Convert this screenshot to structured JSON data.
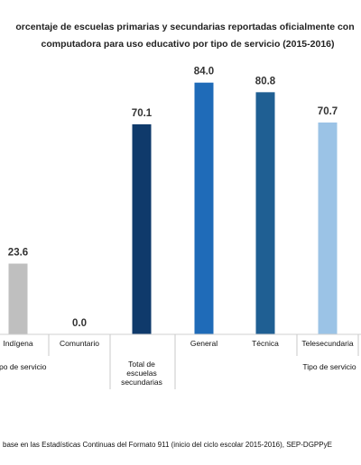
{
  "chart_data": {
    "type": "bar",
    "title_lines": [
      "orcentaje de escuelas primarias y secundarias reportadas oficialmente con",
      "computadora para uso educativo por tipo de servicio (2015-2016)"
    ],
    "categories": [
      [
        "Indígena"
      ],
      [
        "Comuntario"
      ],
      [
        "Total de",
        "escuelas",
        "secundarias"
      ],
      [
        "General"
      ],
      [
        "Técnica"
      ],
      [
        "Telesecundaria"
      ]
    ],
    "values": [
      23.6,
      0.0,
      70.1,
      84.0,
      80.8,
      70.7
    ],
    "value_labels": [
      "23.6",
      "0.0",
      "70.1",
      "84.0",
      "80.8",
      "70.7"
    ],
    "colors": [
      "#bfbfbf",
      "#bfbfbf",
      "#0f3a6b",
      "#1f6bb8",
      "#1f5f93",
      "#9bc3e6"
    ],
    "group_labels": [
      "po de servicio",
      "Tipo de servicio"
    ],
    "source": "base en las Estadísticas Continuas del Formato 911 (inicio del ciclo escolar 2015-2016), SEP-DGPPyE",
    "ylim": [
      0,
      100
    ],
    "grid": false,
    "legend": "none"
  }
}
